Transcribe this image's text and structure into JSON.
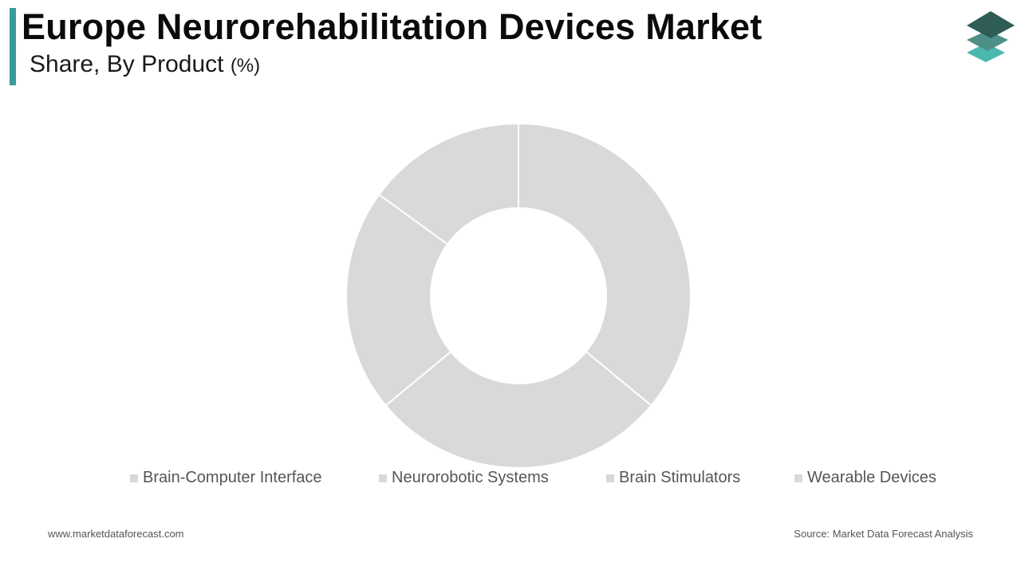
{
  "header": {
    "title": "Europe Neurorehabilitation Devices Market",
    "subtitle": "Share, By Product",
    "unit": "(%)"
  },
  "colors": {
    "accent": "#3a9a9a",
    "slice": "#d9d9d9",
    "separator": "#ffffff",
    "logo_top": "#2f5c56",
    "logo_mid": "#4e8f87",
    "logo_bottom": "#4bb8b0"
  },
  "chart_data": {
    "type": "pie",
    "donut": true,
    "categories": [
      "Brain-Computer Interface",
      "Neurorobotic Systems",
      "Brain Stimulators",
      "Wearable Devices"
    ],
    "values": [
      36,
      28,
      21,
      15
    ],
    "legend_position": "bottom"
  },
  "footer": {
    "website": "www.marketdataforecast.com",
    "source": "Source: Market Data Forecast Analysis"
  },
  "logo": {
    "icon": "stacked-layers-icon"
  }
}
